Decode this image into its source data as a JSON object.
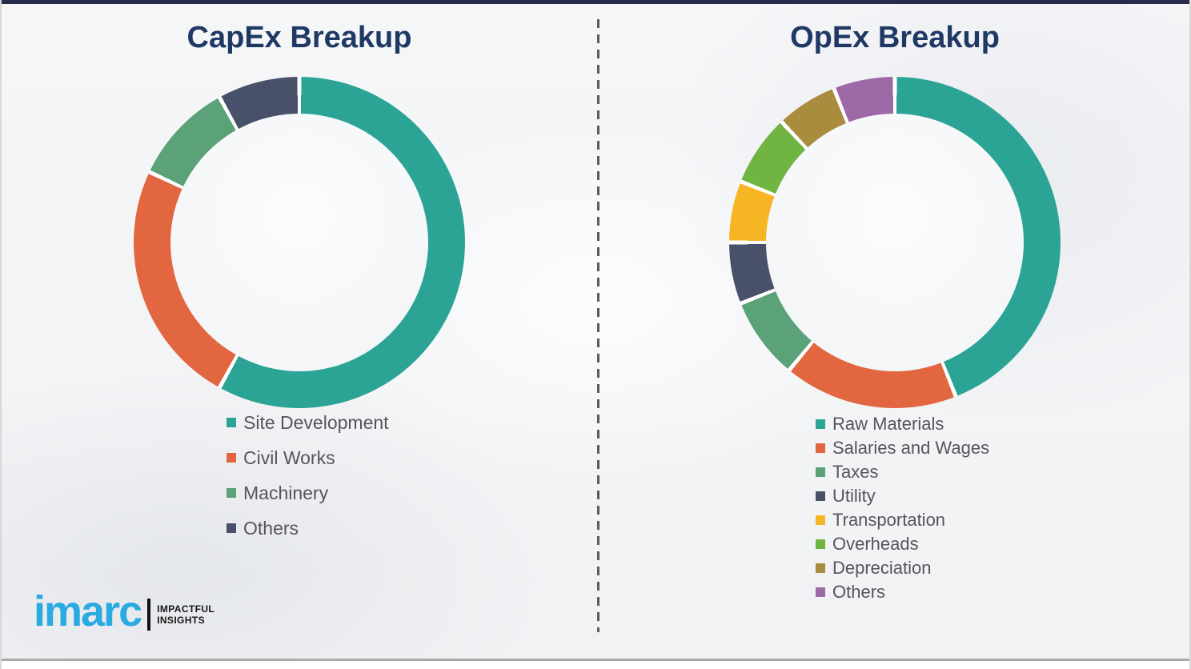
{
  "chart_data": [
    {
      "type": "pie",
      "subtype": "donut",
      "title": "CapEx Breakup",
      "categories": [
        "Site Development",
        "Civil Works",
        "Machinery",
        "Others"
      ],
      "values": [
        58,
        24,
        10,
        8
      ],
      "colors": [
        "#2BA496",
        "#E2663F",
        "#5BA279",
        "#485169"
      ],
      "start_angle": 0,
      "direction": "clockwise",
      "legend_position": "below-left",
      "hole_ratio": 0.78
    },
    {
      "type": "pie",
      "subtype": "donut",
      "title": "OpEx Breakup",
      "categories": [
        "Raw Materials",
        "Salaries and Wages",
        "Taxes",
        "Utility",
        "Transportation",
        "Overheads",
        "Depreciation",
        "Others"
      ],
      "values": [
        44,
        17,
        8,
        6,
        6,
        7,
        6,
        6
      ],
      "colors": [
        "#2BA496",
        "#E2663F",
        "#5BA279",
        "#485169",
        "#F6B623",
        "#70B442",
        "#A98C3E",
        "#9D68A6"
      ],
      "start_angle": 0,
      "direction": "clockwise",
      "legend_position": "below-left",
      "hole_ratio": 0.78
    }
  ],
  "logo": {
    "brand": "imarc",
    "tagline": [
      "IMPACTFUL",
      "INSIGHTS"
    ]
  },
  "theme": {
    "title_color": "#1F3864",
    "legend_text_color": "#55565A",
    "brand_blue": "#29ABE2",
    "top_bar_color": "#272C4D",
    "bottom_rule_color": "#A9A9A9",
    "divider_color": "#5D5D5D",
    "segment_gap_color": "#FFFFFF",
    "background_color": "#F3F4F6"
  }
}
